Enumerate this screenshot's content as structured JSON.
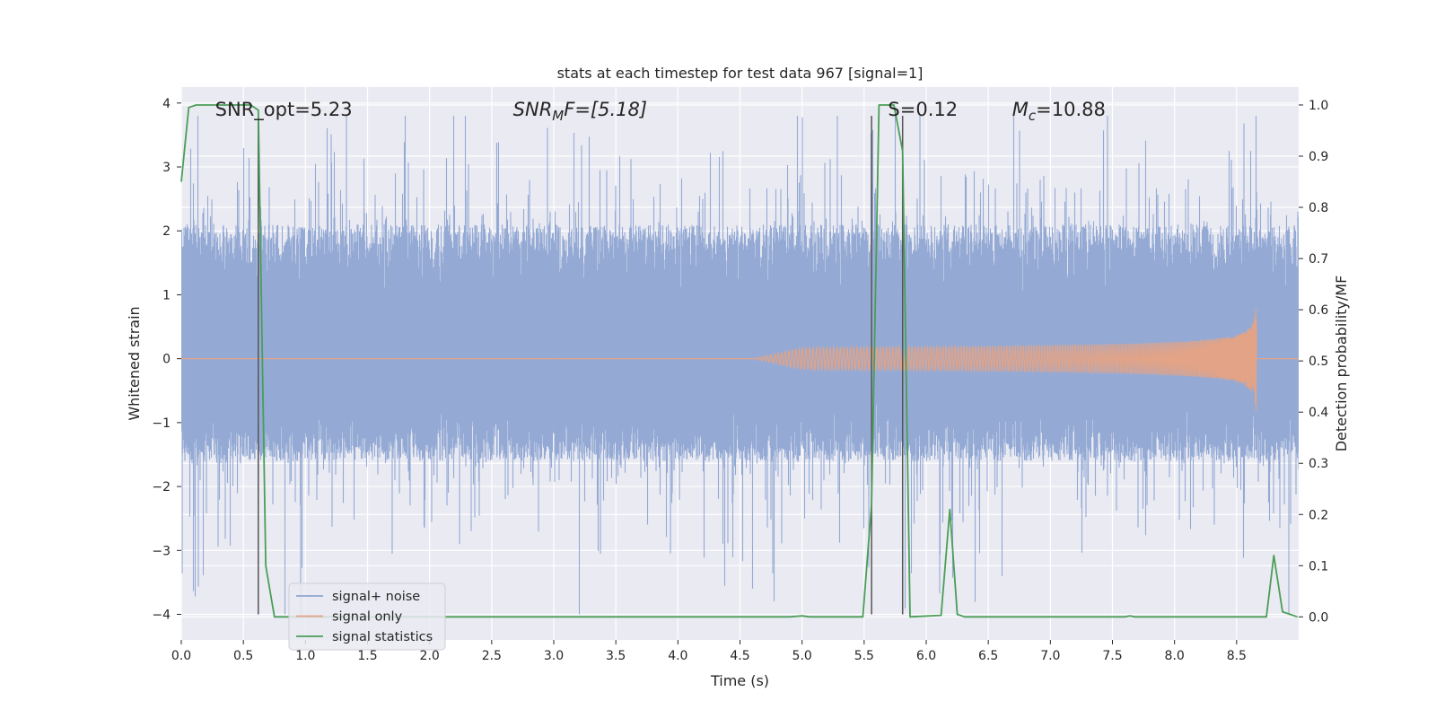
{
  "chart_data": {
    "type": "line",
    "title": "stats at each timestep for test data 967 [signal=1]",
    "xlabel": "Time (s)",
    "ylabel": "Whitened strain",
    "y2label": "Detection probability/MF",
    "xlim": [
      0,
      9.0
    ],
    "ylim": [
      -4.4,
      4.25
    ],
    "y2lim": [
      -0.045,
      1.035
    ],
    "xticks": [
      0.0,
      0.5,
      1.0,
      1.5,
      2.0,
      2.5,
      3.0,
      3.5,
      4.0,
      4.5,
      5.0,
      5.5,
      6.0,
      6.5,
      7.0,
      7.5,
      8.0,
      8.5
    ],
    "xtick_labels": [
      "0.0",
      "0.5",
      "1.0",
      "1.5",
      "2.0",
      "2.5",
      "3.0",
      "3.5",
      "4.0",
      "4.5",
      "5.0",
      "5.5",
      "6.0",
      "6.5",
      "7.0",
      "7.5",
      "8.0",
      "8.5"
    ],
    "yticks": [
      4,
      3,
      2,
      1,
      0,
      -1,
      -2,
      -3,
      -4
    ],
    "ytick_labels": [
      "4",
      "3",
      "2",
      "1",
      "0",
      "−1",
      "−2",
      "−3",
      "−4"
    ],
    "y2ticks": [
      1.0,
      0.9,
      0.8,
      0.7,
      0.6,
      0.5,
      0.4,
      0.3,
      0.2,
      0.1,
      0.0
    ],
    "y2tick_labels": [
      "1.0",
      "0.9",
      "0.8",
      "0.7",
      "0.6",
      "0.5",
      "0.4",
      "0.3",
      "0.2",
      "0.1",
      "0.0"
    ],
    "grid": true,
    "legend_position": "lower-left",
    "annotations": [
      {
        "text": "SNR_opt=5.23",
        "x": 0.2,
        "y": 3.9
      },
      {
        "text": "SNR",
        "sub": "M",
        "suffix": "F=[5.18]",
        "italic_prefix": true,
        "x": 2.6,
        "y": 3.9
      },
      {
        "text": "S=0.12",
        "x": 5.62,
        "y": 3.9
      },
      {
        "text": "M",
        "sub": "c",
        "suffix": "=10.88",
        "italic_prefix": true,
        "x": 6.62,
        "y": 3.9
      }
    ],
    "vlines": [
      {
        "x": 0.62,
        "ymin": -4.0,
        "ymax": 3.8
      },
      {
        "x": 5.56,
        "ymin": -4.0,
        "ymax": 3.8
      },
      {
        "x": 5.81,
        "ymin": -4.0,
        "ymax": 3.8
      }
    ],
    "series": [
      {
        "name": "signal+ noise",
        "color": "#8fa6d3",
        "axis": "left",
        "kind": "noise",
        "typical_range": [
          -1.6,
          2.1
        ],
        "extreme_range": [
          -4.0,
          3.8
        ]
      },
      {
        "name": "signal only",
        "color": "#e2a387",
        "axis": "left",
        "kind": "chirp",
        "start": 4.6,
        "end": 8.66,
        "peak_amplitude": 0.95
      },
      {
        "name": "signal statistics",
        "color": "#4a9e57",
        "axis": "right",
        "x": [
          0.0,
          0.06,
          0.12,
          0.18,
          0.25,
          0.31,
          0.37,
          0.43,
          0.5,
          0.56,
          0.62,
          0.68,
          0.75,
          0.81,
          4.9,
          5.0,
          5.06,
          5.49,
          5.56,
          5.62,
          5.68,
          5.74,
          5.81,
          5.87,
          6.12,
          6.19,
          6.25,
          6.31,
          7.6,
          7.64,
          7.68,
          8.74,
          8.8,
          8.87,
          8.99
        ],
        "values": [
          0.85,
          0.995,
          1.0,
          1.0,
          1.0,
          1.0,
          1.0,
          1.0,
          1.0,
          1.0,
          0.99,
          0.1,
          0.0,
          0.0,
          0.0,
          0.002,
          0.0,
          0.0,
          0.22,
          1.0,
          1.0,
          1.0,
          0.91,
          0.0,
          0.003,
          0.21,
          0.005,
          0.0,
          0.0,
          0.002,
          0.0,
          0.0,
          0.12,
          0.01,
          0.0
        ]
      }
    ]
  },
  "colors": {
    "plot_background": "#eaeaf2",
    "grid": "#ffffff",
    "text": "#262626",
    "vline": "#555555"
  }
}
